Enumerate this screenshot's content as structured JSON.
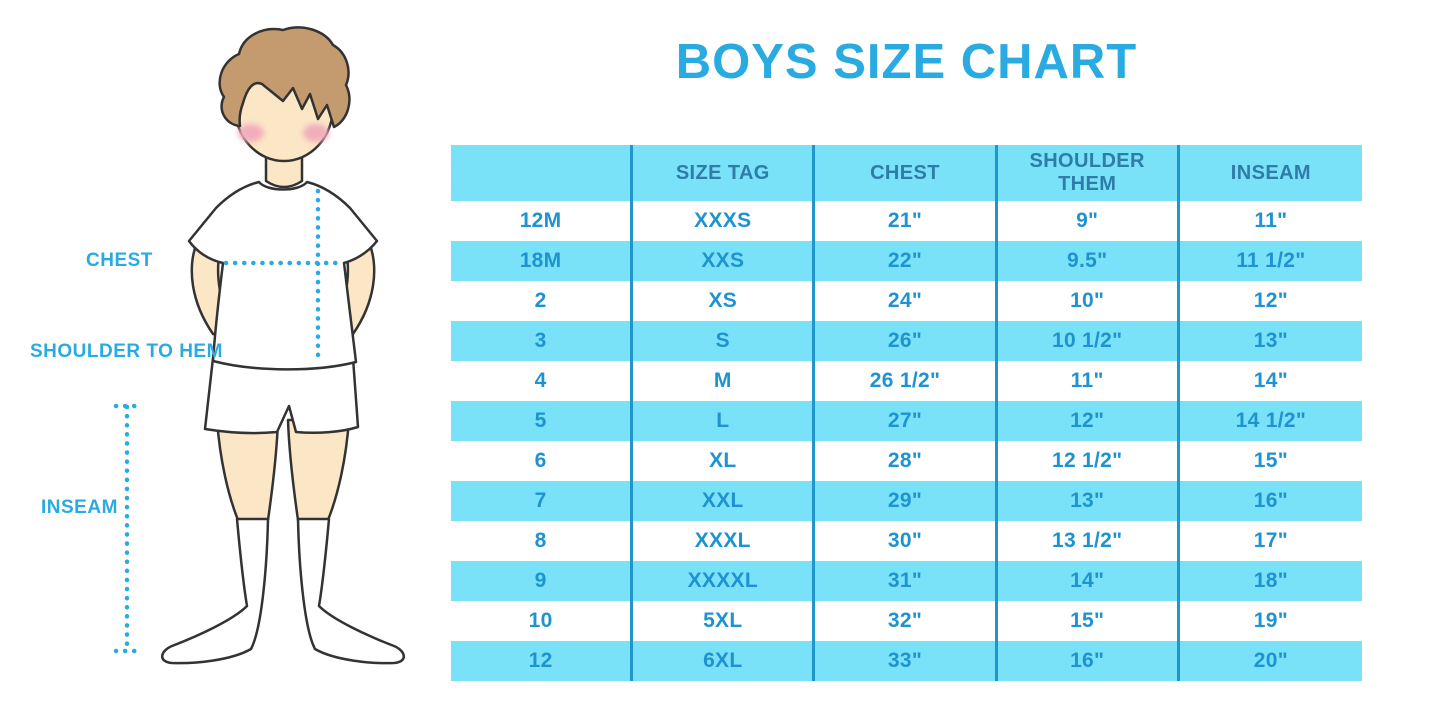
{
  "title": "BOYS SIZE CHART",
  "colors": {
    "accent": "#29ABE2",
    "cyan": "#79E2F9",
    "divider": "#2097CB",
    "header_text": "#2E7CA8",
    "cell_text": "#1E93D0",
    "skin": "#FBE7C6",
    "hair": "#C49B6E",
    "cheek": "#F2AEBC",
    "outline": "#333333"
  },
  "figure": {
    "illustration": "boy-front-white-tshirt-shorts-knee-socks",
    "labels": {
      "chest": "CHEST",
      "shoulder_to_hem": "SHOULDER TO HEM",
      "inseam": "INSEAM"
    }
  },
  "chart_data": {
    "type": "table",
    "title": "BOYS SIZE CHART",
    "columns": [
      "",
      "SIZE TAG",
      "CHEST",
      "SHOULDER THEM",
      "INSEAM"
    ],
    "rows": [
      [
        "12M",
        "XXXS",
        "21\"",
        "9\"",
        "11\""
      ],
      [
        "18M",
        "XXS",
        "22\"",
        "9.5\"",
        "11 1/2\""
      ],
      [
        "2",
        "XS",
        "24\"",
        "10\"",
        "12\""
      ],
      [
        "3",
        "S",
        "26\"",
        "10 1/2\"",
        "13\""
      ],
      [
        "4",
        "M",
        "26 1/2\"",
        "11\"",
        "14\""
      ],
      [
        "5",
        "L",
        "27\"",
        "12\"",
        "14 1/2\""
      ],
      [
        "6",
        "XL",
        "28\"",
        "12 1/2\"",
        "15\""
      ],
      [
        "7",
        "XXL",
        "29\"",
        "13\"",
        "16\""
      ],
      [
        "8",
        "XXXL",
        "30\"",
        "13 1/2\"",
        "17\""
      ],
      [
        "9",
        "XXXXL",
        "31\"",
        "14\"",
        "18\""
      ],
      [
        "10",
        "5XL",
        "32\"",
        "15\"",
        "19\""
      ],
      [
        "12",
        "6XL",
        "33\"",
        "16\"",
        "20\""
      ]
    ],
    "layout": {
      "row_striping": "alternating white and light-cyan, first data row white",
      "column_dividers": "vertical dark-blue lines between all five columns, no outer border",
      "header_background": "light-cyan"
    }
  }
}
